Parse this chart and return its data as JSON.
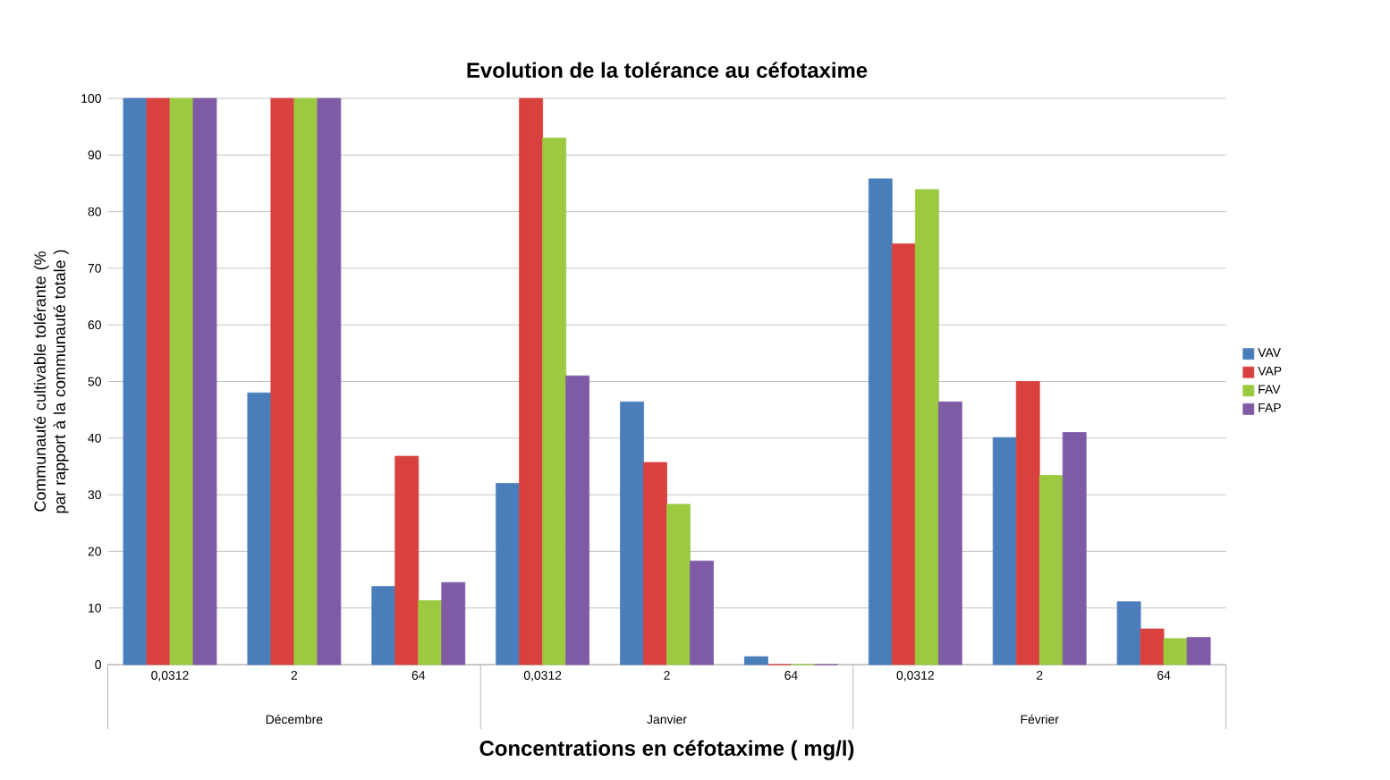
{
  "chart_data": {
    "type": "bar",
    "title": "Evolution de la tolérance au céfotaxime",
    "xlabel": "Concentrations en céfotaxime ( mg/l)",
    "ylabel": "Communauté cultivable tolérante (% par rapport à la communauté totale )",
    "categories": [
      "0,0312",
      "2",
      "64",
      "0,0312",
      "2",
      "64",
      "0,0312",
      "2",
      "64"
    ],
    "annotations": [
      "Décembre",
      "Janvier",
      "Février"
    ],
    "series": [
      {
        "name": "VAV",
        "color": "#4a7ebb",
        "values": [
          100,
          48,
          13.8,
          32,
          46.4,
          1.4,
          85.8,
          40.1,
          11.1
        ]
      },
      {
        "name": "VAP",
        "color": "#d9413e",
        "values": [
          100,
          100,
          36.8,
          100,
          35.7,
          0,
          74.3,
          50,
          6.3
        ]
      },
      {
        "name": "FAV",
        "color": "#9bc940",
        "values": [
          100,
          100,
          11.3,
          93,
          28.3,
          0,
          83.9,
          33.4,
          4.6
        ]
      },
      {
        "name": "FAP",
        "color": "#7f5ba6",
        "values": [
          100,
          100,
          14.5,
          51,
          18.3,
          0,
          46.4,
          41,
          4.8
        ]
      }
    ],
    "ylim": [
      0,
      100
    ],
    "yticks": [
      0,
      10,
      20,
      30,
      40,
      50,
      60,
      70,
      80,
      90,
      100
    ],
    "grid": "y",
    "legend": "right"
  }
}
